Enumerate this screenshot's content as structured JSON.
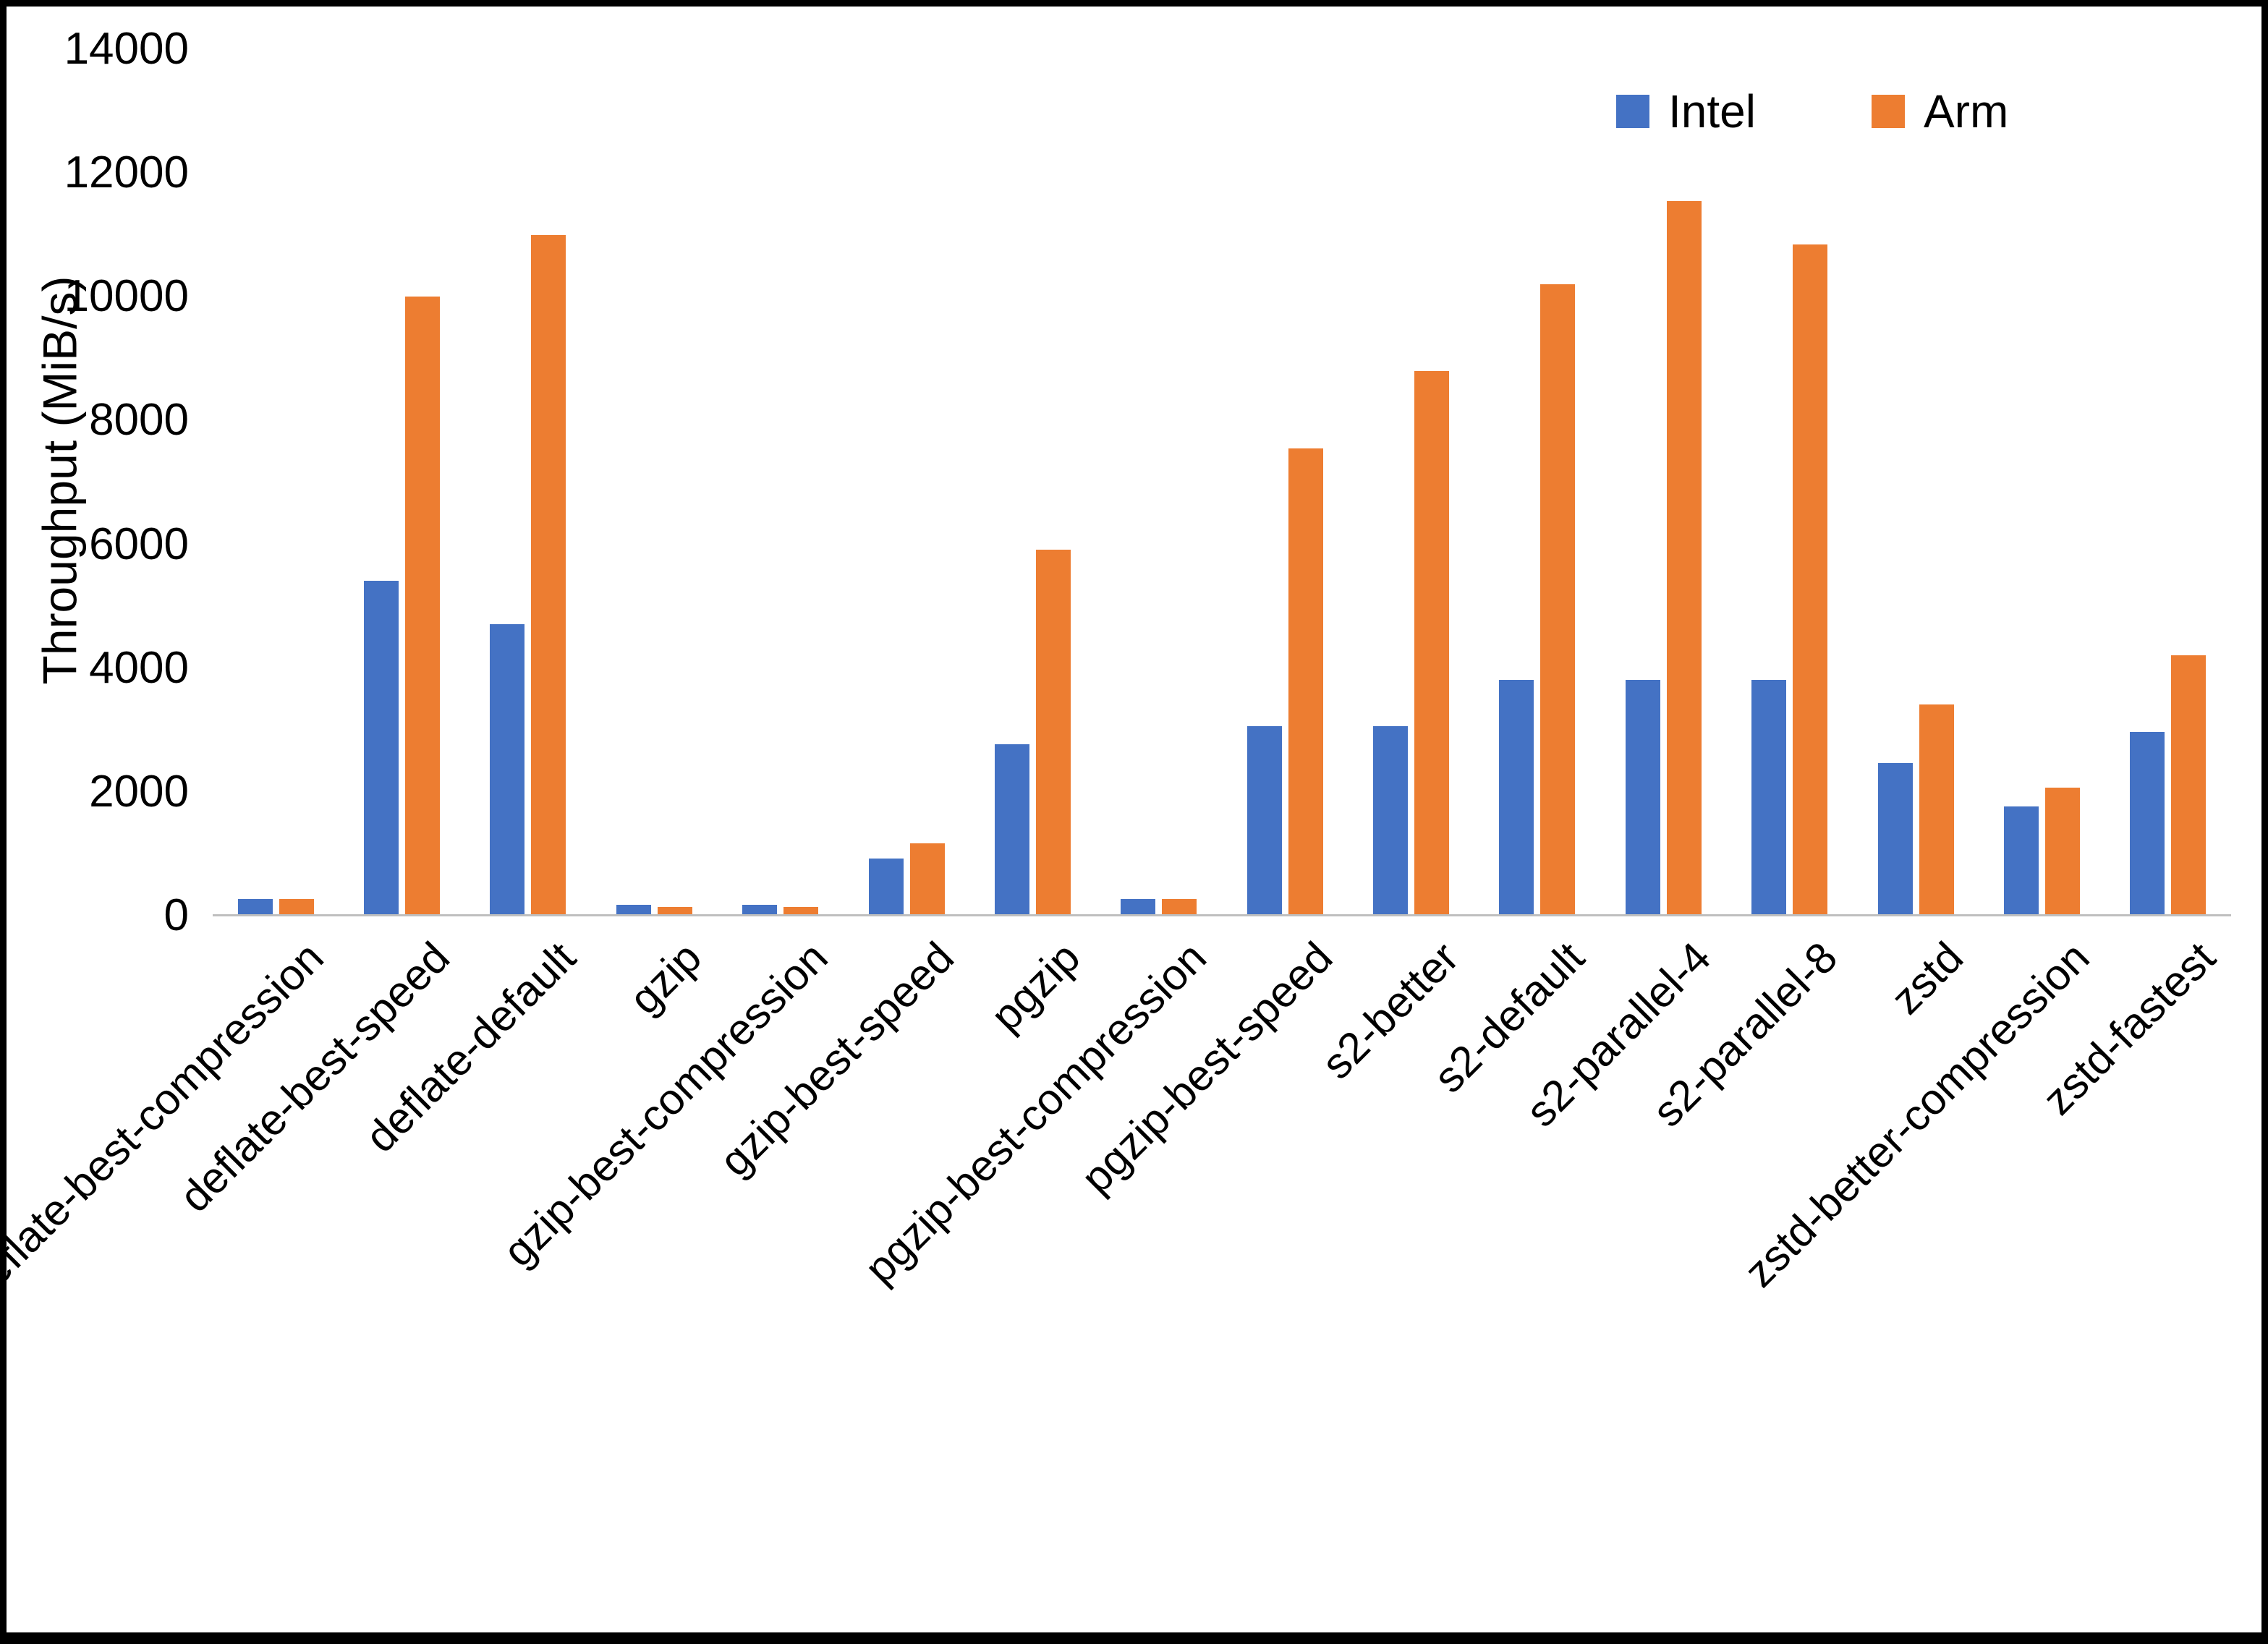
{
  "chart_data": {
    "type": "bar",
    "title": "",
    "xlabel": "",
    "ylabel": "Throughput (MiB/s)",
    "ylim": [
      0,
      14000
    ],
    "yticks": [
      0,
      2000,
      4000,
      6000,
      8000,
      10000,
      12000,
      14000
    ],
    "grid": false,
    "legend_position": "top-right",
    "categories": [
      "deflate-best-compression",
      "deflate-best-speed",
      "deflate-default",
      "gzip",
      "gzip-best-compression",
      "gzip-best-speed",
      "pgzip",
      "pgzip-best-compression",
      "pgzip-best-speed",
      "s2-better",
      "s2-default",
      "s2-parallel-4",
      "s2-parallel-8",
      "zstd",
      "zstd-better-compression",
      "zstd-fastest"
    ],
    "series": [
      {
        "name": "Intel",
        "color": "#4472C4",
        "values": [
          250,
          5400,
          4700,
          150,
          150,
          900,
          2750,
          250,
          3050,
          3050,
          3800,
          3800,
          3800,
          2450,
          1750,
          2950
        ]
      },
      {
        "name": "Arm",
        "color": "#ED7D31",
        "values": [
          250,
          10000,
          11000,
          120,
          120,
          1150,
          5900,
          250,
          7550,
          8800,
          10200,
          11550,
          10850,
          3400,
          2050,
          4200
        ]
      }
    ]
  },
  "colors": {
    "axis_line": "#bfbfbf",
    "text": "#000000",
    "frame_border": "#000000",
    "background": "#ffffff"
  }
}
